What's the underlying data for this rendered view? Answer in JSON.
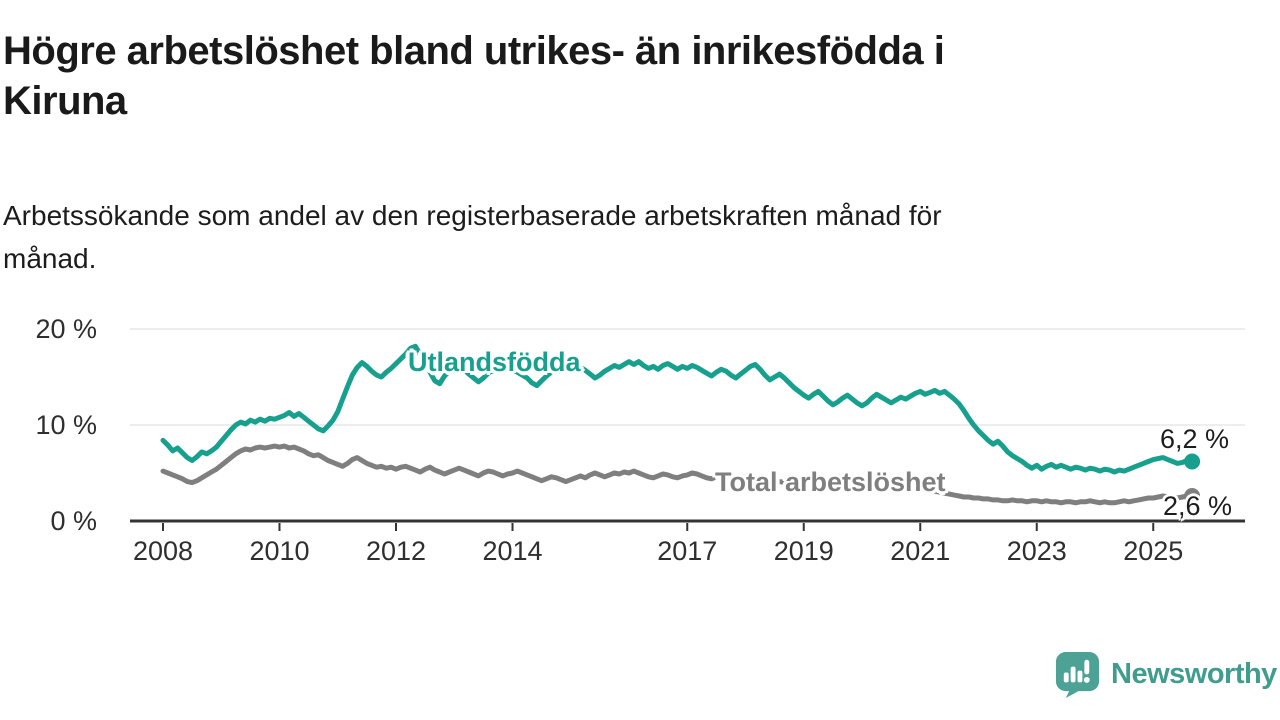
{
  "header": {
    "title_lines": [
      "Högre arbetslöshet bland utrikes- än inrikesfödda i",
      "Kiruna"
    ],
    "subtitle_lines": [
      "Arbetssökande som andel av den registerbaserade arbetskraften månad för",
      "månad."
    ]
  },
  "chart_data": {
    "type": "line",
    "title": "Högre arbetslöshet bland utrikes- än inrikesfödda i Kiruna",
    "subtitle": "Arbetssökande som andel av den registerbaserade arbetskraften månad för månad.",
    "x_unit": "monthly, January 2008 – September 2025",
    "x_start": 2008.0,
    "x_step": 0.0833333,
    "xlim": [
      2008.0,
      2025.75
    ],
    "ylim": [
      0,
      20
    ],
    "x_ticks": [
      2008,
      2010,
      2012,
      2014,
      2017,
      2019,
      2021,
      2023,
      2025
    ],
    "y_ticks": [
      0,
      10,
      20
    ],
    "y_tick_suffix": " %",
    "grid": "horizontal",
    "legend_position": "inline-labels",
    "series": [
      {
        "name": "Utlandsfödda",
        "color": "#18A08F",
        "end_label": "6,2 %",
        "end_value": 6.2,
        "values": [
          8.4,
          7.9,
          7.3,
          7.6,
          7.1,
          6.6,
          6.3,
          6.7,
          7.2,
          7.0,
          7.3,
          7.7,
          8.3,
          8.9,
          9.5,
          10.0,
          10.3,
          10.1,
          10.5,
          10.3,
          10.6,
          10.4,
          10.7,
          10.6,
          10.8,
          11.0,
          11.3,
          10.9,
          11.2,
          10.8,
          10.4,
          10.0,
          9.6,
          9.4,
          9.9,
          10.5,
          11.4,
          12.7,
          14.0,
          15.2,
          16.0,
          16.5,
          16.1,
          15.6,
          15.2,
          15.0,
          15.5,
          15.9,
          16.4,
          16.9,
          17.4,
          18.0,
          18.2,
          17.3,
          16.4,
          15.5,
          14.6,
          14.3,
          15.1,
          15.6,
          16.0,
          16.3,
          15.8,
          15.3,
          14.9,
          14.5,
          14.9,
          15.4,
          15.7,
          15.5,
          15.8,
          16.0,
          15.8,
          15.5,
          15.2,
          14.9,
          14.4,
          14.1,
          14.6,
          15.1,
          15.5,
          15.8,
          15.6,
          15.9,
          16.1,
          16.4,
          16.0,
          15.7,
          15.3,
          14.9,
          15.2,
          15.6,
          15.9,
          16.2,
          16.0,
          16.3,
          16.6,
          16.3,
          16.6,
          16.2,
          15.9,
          16.1,
          15.8,
          16.2,
          16.4,
          16.1,
          15.8,
          16.1,
          15.9,
          16.2,
          16.0,
          15.7,
          15.4,
          15.1,
          15.5,
          15.8,
          15.6,
          15.2,
          14.9,
          15.3,
          15.7,
          16.1,
          16.3,
          15.8,
          15.2,
          14.7,
          15.0,
          15.3,
          14.9,
          14.4,
          13.9,
          13.5,
          13.1,
          12.8,
          13.2,
          13.5,
          13.0,
          12.5,
          12.1,
          12.4,
          12.8,
          13.1,
          12.7,
          12.3,
          12.0,
          12.3,
          12.8,
          13.2,
          12.9,
          12.6,
          12.3,
          12.6,
          12.9,
          12.7,
          13.0,
          13.3,
          13.5,
          13.2,
          13.4,
          13.6,
          13.3,
          13.5,
          13.1,
          12.7,
          12.2,
          11.5,
          10.7,
          10.0,
          9.4,
          8.9,
          8.4,
          8.0,
          8.3,
          7.8,
          7.2,
          6.8,
          6.5,
          6.2,
          5.8,
          5.5,
          5.8,
          5.4,
          5.7,
          5.9,
          5.6,
          5.8,
          5.6,
          5.4,
          5.6,
          5.5,
          5.3,
          5.5,
          5.4,
          5.2,
          5.4,
          5.3,
          5.1,
          5.3,
          5.2,
          5.4,
          5.6,
          5.8,
          6.0,
          6.2,
          6.4,
          6.5,
          6.6,
          6.4,
          6.2,
          6.0,
          6.1,
          6.3,
          6.2
        ]
      },
      {
        "name": "Total arbetslöshet",
        "color": "#7F7F7F",
        "end_label": "2,6 %",
        "end_value": 2.6,
        "values": [
          5.2,
          5.0,
          4.8,
          4.6,
          4.4,
          4.1,
          4.0,
          4.2,
          4.5,
          4.8,
          5.1,
          5.4,
          5.8,
          6.2,
          6.6,
          7.0,
          7.3,
          7.5,
          7.4,
          7.6,
          7.7,
          7.6,
          7.7,
          7.8,
          7.7,
          7.8,
          7.6,
          7.7,
          7.5,
          7.3,
          7.0,
          6.8,
          6.9,
          6.6,
          6.3,
          6.1,
          5.9,
          5.7,
          6.0,
          6.4,
          6.6,
          6.3,
          6.0,
          5.8,
          5.6,
          5.7,
          5.5,
          5.6,
          5.4,
          5.6,
          5.7,
          5.5,
          5.3,
          5.1,
          5.4,
          5.6,
          5.3,
          5.1,
          4.9,
          5.1,
          5.3,
          5.5,
          5.3,
          5.1,
          4.9,
          4.7,
          5.0,
          5.2,
          5.1,
          4.9,
          4.7,
          4.9,
          5.0,
          5.2,
          5.0,
          4.8,
          4.6,
          4.4,
          4.2,
          4.4,
          4.6,
          4.5,
          4.3,
          4.1,
          4.3,
          4.5,
          4.7,
          4.5,
          4.8,
          5.0,
          4.8,
          4.6,
          4.8,
          5.0,
          4.9,
          5.1,
          5.0,
          5.2,
          5.0,
          4.8,
          4.6,
          4.5,
          4.7,
          4.9,
          4.8,
          4.6,
          4.5,
          4.7,
          4.8,
          5.0,
          4.9,
          4.7,
          4.5,
          4.4,
          4.6,
          4.8,
          4.7,
          4.5,
          4.4,
          4.6,
          4.5,
          4.3,
          4.2,
          4.1,
          4.0,
          3.9,
          4.0,
          4.1,
          4.0,
          3.9,
          3.8,
          3.9,
          4.0,
          4.1,
          4.0,
          3.9,
          3.8,
          3.7,
          3.8,
          3.9,
          3.8,
          3.7,
          3.6,
          3.7,
          3.8,
          3.9,
          4.1,
          4.3,
          4.2,
          4.1,
          4.0,
          3.9,
          3.8,
          3.7,
          3.6,
          3.5,
          3.4,
          3.3,
          3.2,
          3.1,
          3.0,
          2.9,
          2.8,
          2.7,
          2.6,
          2.5,
          2.5,
          2.4,
          2.4,
          2.3,
          2.3,
          2.2,
          2.2,
          2.1,
          2.1,
          2.2,
          2.1,
          2.1,
          2.0,
          2.1,
          2.1,
          2.0,
          2.1,
          2.0,
          2.0,
          1.9,
          2.0,
          2.0,
          1.9,
          2.0,
          2.0,
          2.1,
          2.0,
          1.9,
          2.0,
          1.9,
          1.9,
          2.0,
          2.1,
          2.0,
          2.1,
          2.2,
          2.3,
          2.4,
          2.4,
          2.5,
          2.6,
          2.5,
          2.5,
          2.4,
          2.5,
          2.6,
          2.6
        ]
      }
    ]
  },
  "colors": {
    "accent_teal": "#18A08F",
    "series_gray": "#7F7F7F",
    "title_text": "#1A1A1A",
    "axis_text": "#2F2F2F",
    "axis_line": "#333333",
    "gridline": "#DBDBDB",
    "value_label_text": "#1D1D1D",
    "brand": "#3F9C8E",
    "logo_fill": "#4CA294"
  },
  "footer": {
    "brand": "Newsworthy",
    "logo_icon": "speech-bubble-bar-chart-icon"
  }
}
